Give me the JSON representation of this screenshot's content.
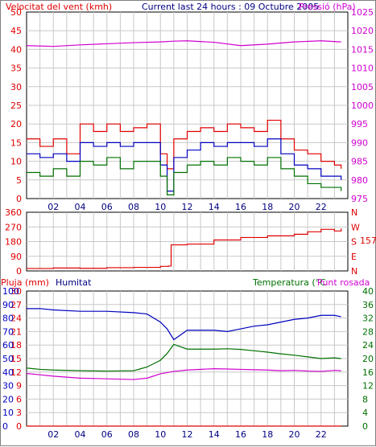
{
  "colors": {
    "red": "#e00000",
    "green": "#007000",
    "blue": "#0000c0",
    "magenta": "#d000d0",
    "navy": "#000080",
    "grid": "#c8c8c8",
    "axis": "#000000"
  },
  "chart_data": [
    {
      "type": "line",
      "panel": "wind-pressure",
      "title": "Current last 24 hours : 09 Octubre 2005",
      "left_axis_label": "Velocitat del vent (kmh)",
      "right_axis_label": "Pressió (hPa)",
      "left_ticks": [
        "0",
        "5",
        "10",
        "15",
        "20",
        "25",
        "30",
        "35",
        "40",
        "45",
        "50"
      ],
      "right_ticks": [
        "975",
        "980",
        "985",
        "990",
        "995",
        "1000",
        "1005",
        "1010",
        "1015",
        "1020",
        "1025"
      ],
      "x_ticks": [
        "02",
        "04",
        "06",
        "08",
        "10",
        "12",
        "14",
        "16",
        "18",
        "20",
        "22"
      ],
      "xlim": [
        0,
        24
      ],
      "ylim_left": [
        0,
        50
      ],
      "ylim_right": [
        975,
        1025
      ],
      "grid": true,
      "series": [
        {
          "axis": "right",
          "color": "red-magenta",
          "x": [
            0,
            2,
            4,
            6,
            8,
            10,
            11,
            12,
            14,
            16,
            18,
            20,
            22,
            23.5
          ],
          "values": [
            1016,
            1015.8,
            1016.2,
            1016.5,
            1016.8,
            1017,
            1017.2,
            1017.3,
            1016.9,
            1016,
            1016.4,
            1017,
            1017.3,
            1017
          ]
        },
        {
          "axis": "left",
          "x": [
            0,
            1,
            2,
            3,
            4,
            5,
            6,
            7,
            8,
            9,
            10,
            10.5,
            11,
            12,
            13,
            14,
            15,
            16,
            17,
            18,
            19,
            20,
            21,
            22,
            23,
            23.5
          ],
          "values": [
            16,
            14,
            16,
            12,
            20,
            18,
            20,
            18,
            19,
            20,
            12,
            8,
            16,
            18,
            19,
            18,
            20,
            19,
            18,
            21,
            16,
            13,
            12,
            10,
            9,
            8
          ]
        },
        {
          "axis": "left",
          "x": [
            0,
            1,
            2,
            3,
            4,
            5,
            6,
            7,
            8,
            9,
            10,
            10.5,
            11,
            12,
            13,
            14,
            15,
            16,
            17,
            18,
            19,
            20,
            21,
            22,
            23,
            23.5
          ],
          "values": [
            12,
            11,
            12,
            10,
            15,
            14,
            15,
            14,
            15,
            15,
            9,
            2,
            11,
            13,
            15,
            14,
            15,
            15,
            14,
            16,
            12,
            9,
            8,
            6,
            6,
            5
          ]
        },
        {
          "axis": "left",
          "x": [
            0,
            1,
            2,
            3,
            4,
            5,
            6,
            7,
            8,
            9,
            10,
            10.5,
            11,
            12,
            13,
            14,
            15,
            16,
            17,
            18,
            19,
            20,
            21,
            22,
            23,
            23.5
          ],
          "values": [
            7,
            6,
            8,
            6,
            10,
            9,
            11,
            8,
            10,
            10,
            6,
            1,
            7,
            9,
            10,
            9,
            11,
            10,
            9,
            11,
            8,
            6,
            4,
            3,
            3,
            2
          ]
        }
      ]
    },
    {
      "type": "line",
      "panel": "wind-direction",
      "left_ticks": [
        "0",
        "90",
        "180",
        "270",
        "360"
      ],
      "right_ticks": [
        "N",
        "E",
        "S",
        "W",
        "N"
      ],
      "current_value_label": "157",
      "x_ticks": [],
      "xlim": [
        0,
        24
      ],
      "ylim": [
        0,
        360
      ],
      "grid": true,
      "series": [
        {
          "color": "red",
          "x": [
            0,
            2,
            4,
            6,
            8,
            10,
            10.6,
            10.8,
            12,
            14,
            16,
            18,
            20,
            21,
            22,
            23,
            23.5
          ],
          "values": [
            15,
            18,
            16,
            20,
            22,
            28,
            30,
            160,
            165,
            190,
            205,
            215,
            225,
            240,
            255,
            245,
            260
          ]
        }
      ]
    },
    {
      "type": "line",
      "panel": "humidity-temperature",
      "labels": {
        "rain": "Pluja (mm)",
        "humidity": "Humitat",
        "temperature": "Temperatura (°C",
        "dewpoint": "Punt rosada"
      },
      "rain_ticks": [
        "0",
        "3",
        "6",
        "9",
        "12",
        "15",
        "18",
        "21",
        "24",
        "27",
        "30"
      ],
      "humidity_ticks": [
        "0",
        "10",
        "20",
        "30",
        "40",
        "50",
        "60",
        "70",
        "80",
        "90",
        "100"
      ],
      "temp_ticks": [
        "0",
        "4",
        "8",
        "12",
        "16",
        "20",
        "24",
        "28",
        "32",
        "36",
        "40"
      ],
      "x_ticks": [
        "02",
        "04",
        "06",
        "08",
        "10",
        "12",
        "14",
        "16",
        "18",
        "20",
        "22"
      ],
      "xlim": [
        0,
        24
      ],
      "ylim_humidity": [
        0,
        100
      ],
      "ylim_temp": [
        0,
        40
      ],
      "grid": true,
      "series": [
        {
          "axis": "humidity",
          "color": "blue",
          "x": [
            0,
            1,
            2,
            4,
            6,
            8,
            9,
            10,
            10.5,
            11,
            12,
            14,
            15,
            16,
            17,
            18,
            19,
            20,
            21,
            22,
            23,
            23.5
          ],
          "values": [
            87,
            87,
            86,
            85,
            85,
            84,
            83,
            77,
            72,
            64,
            71,
            71,
            70,
            72,
            74,
            75,
            77,
            79,
            80,
            82,
            82,
            81
          ]
        },
        {
          "axis": "temp",
          "color": "green",
          "x": [
            0,
            1,
            2,
            4,
            6,
            8,
            9,
            10,
            10.5,
            11,
            12,
            14,
            15,
            16,
            17,
            18,
            19,
            20,
            21,
            22,
            23,
            23.5
          ],
          "values": [
            17.2,
            16.8,
            16.6,
            16.4,
            16.3,
            16.4,
            17.5,
            19.5,
            21.5,
            24.2,
            22.8,
            22.8,
            22.9,
            22.7,
            22.3,
            21.9,
            21.4,
            21,
            20.5,
            20,
            20.2,
            20
          ]
        },
        {
          "axis": "temp",
          "color": "magenta",
          "x": [
            0,
            1,
            2,
            4,
            6,
            8,
            9,
            10,
            11,
            12,
            14,
            15,
            16,
            17,
            18,
            19,
            20,
            21,
            22,
            23,
            23.5
          ],
          "values": [
            15.6,
            15.2,
            14.8,
            14.2,
            14,
            13.8,
            14.2,
            15.5,
            16.2,
            16.6,
            17,
            16.9,
            16.8,
            16.7,
            16.6,
            16.4,
            16.5,
            16.3,
            16.2,
            16.5,
            16.4
          ]
        },
        {
          "axis": "rain",
          "color": "red",
          "x": [
            0,
            23.5
          ],
          "values": [
            0,
            0
          ]
        }
      ]
    }
  ]
}
